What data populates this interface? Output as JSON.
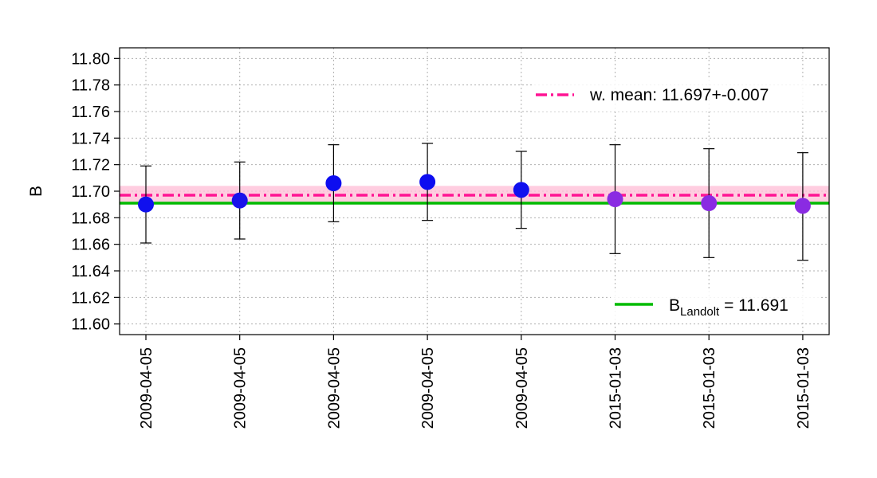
{
  "chart_data": {
    "type": "scatter",
    "ylabel": "B",
    "xlabel": "",
    "ylim": [
      11.592,
      11.808
    ],
    "yticks": [
      "11.60",
      "11.62",
      "11.64",
      "11.66",
      "11.68",
      "11.70",
      "11.72",
      "11.74",
      "11.76",
      "11.78",
      "11.80"
    ],
    "grid": true,
    "categories": [
      "2009-04-05",
      "2009-04-05",
      "2009-04-05",
      "2009-04-05",
      "2009-04-05",
      "2015-01-03",
      "2015-01-03",
      "2015-01-03"
    ],
    "points": [
      {
        "y": 11.69,
        "lower": 11.661,
        "upper": 11.719,
        "color": "#1010ee"
      },
      {
        "y": 11.693,
        "lower": 11.664,
        "upper": 11.722,
        "color": "#1a12ea"
      },
      {
        "y": 11.706,
        "lower": 11.677,
        "upper": 11.735,
        "color": "#0d0df0"
      },
      {
        "y": 11.707,
        "lower": 11.678,
        "upper": 11.736,
        "color": "#0d0df0"
      },
      {
        "y": 11.701,
        "lower": 11.672,
        "upper": 11.73,
        "color": "#1010ee"
      },
      {
        "y": 11.694,
        "lower": 11.653,
        "upper": 11.735,
        "color": "#8a2be2"
      },
      {
        "y": 11.691,
        "lower": 11.65,
        "upper": 11.732,
        "color": "#8a2be2"
      },
      {
        "y": 11.689,
        "lower": 11.648,
        "upper": 11.729,
        "color": "#8a2be2"
      }
    ],
    "weighted_mean": {
      "value": 11.697,
      "error": 0.007,
      "color": "#ff1493",
      "band_color": "#ffc0d8",
      "label": "w. mean: 11.697+-0.007"
    },
    "reference": {
      "value": 11.691,
      "color": "#00bb00",
      "label_main": "B",
      "label_sub": "Landolt",
      "label_rest": " = 11.691"
    },
    "legend_position": "top-right and bottom-right"
  }
}
